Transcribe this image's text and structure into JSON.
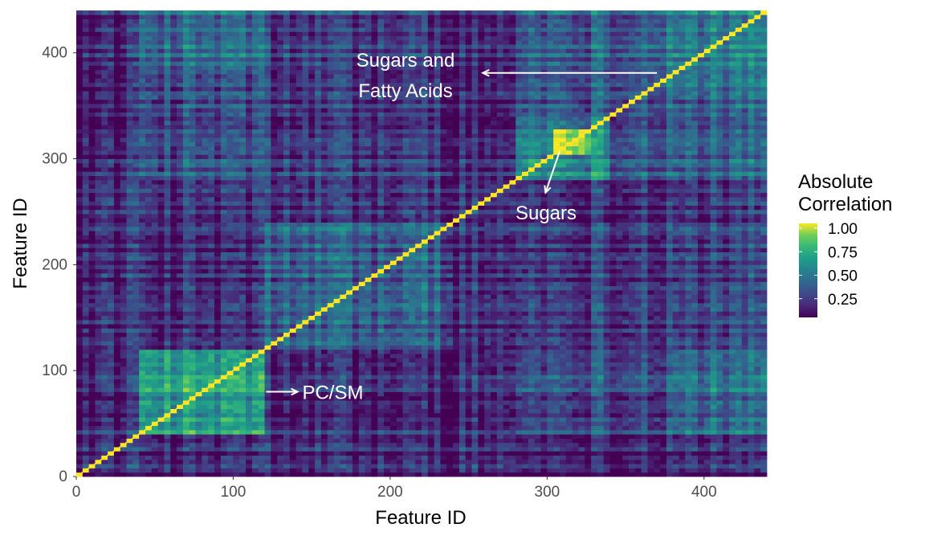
{
  "chart_data": {
    "type": "heatmap",
    "title": "",
    "xlabel": "Feature ID",
    "ylabel": "Feature ID",
    "xlim": [
      0,
      440
    ],
    "ylim": [
      0,
      440
    ],
    "x_ticks": [
      0,
      100,
      200,
      300,
      400
    ],
    "y_ticks": [
      0,
      100,
      200,
      300,
      400
    ],
    "grid": false,
    "colormap": "viridis",
    "colors": {
      "low": "#440154",
      "mid": "#21908c",
      "high": "#fde725"
    },
    "legend": {
      "title_line1": "Absolute",
      "title_line2": "Correlation",
      "placement": "right",
      "ticks": [
        0.25,
        0.5,
        0.75,
        1.0
      ],
      "tick_labels": [
        "0.25",
        "0.50",
        "0.75",
        "1.00"
      ],
      "range": [
        0,
        1
      ]
    },
    "diagonal_value": 1.0,
    "blocks": [
      {
        "x_range": [
          40,
          120
        ],
        "y_range": [
          40,
          120
        ],
        "mean_corr": 0.62
      },
      {
        "x_range": [
          120,
          240
        ],
        "y_range": [
          120,
          240
        ],
        "mean_corr": 0.32
      },
      {
        "x_range": [
          280,
          340
        ],
        "y_range": [
          280,
          340
        ],
        "mean_corr": 0.55
      },
      {
        "x_range": [
          305,
          330
        ],
        "y_range": [
          305,
          330
        ],
        "mean_corr": 0.97
      },
      {
        "x_range": [
          365,
          440
        ],
        "y_range": [
          365,
          440
        ],
        "mean_corr": 0.45
      },
      {
        "x_range": [
          280,
          440
        ],
        "y_range": [
          280,
          440
        ],
        "mean_corr": 0.35
      },
      {
        "x_range": [
          40,
          120
        ],
        "y_range": [
          380,
          440
        ],
        "mean_corr": 0.38
      },
      {
        "x_range": [
          380,
          440
        ],
        "y_range": [
          40,
          120
        ],
        "mean_corr": 0.38
      },
      {
        "x_range": [
          280,
          440
        ],
        "y_range": [
          40,
          120
        ],
        "mean_corr": 0.28
      },
      {
        "x_range": [
          40,
          120
        ],
        "y_range": [
          280,
          440
        ],
        "mean_corr": 0.28
      },
      {
        "x_range": [
          120,
          240
        ],
        "y_range": [
          280,
          440
        ],
        "mean_corr": 0.2
      },
      {
        "x_range": [
          280,
          440
        ],
        "y_range": [
          120,
          240
        ],
        "mean_corr": 0.2
      }
    ],
    "background_corr": 0.12,
    "annotations": [
      {
        "text": "PC/SM",
        "arrow_from": [
          121,
          80
        ],
        "arrow_to": [
          141,
          80
        ],
        "text_at": [
          144,
          80
        ],
        "anchor": "start"
      },
      {
        "text_line1": "Sugars",
        "text_line2": "Fatty Acids",
        "text_line1_full": "Sugars and",
        "arrow_from": [
          370,
          381
        ],
        "arrow_to": [
          259,
          381
        ],
        "text_at": [
          210,
          395
        ],
        "anchor": "middle"
      },
      {
        "text": "Sugars",
        "arrow_from": [
          308,
          307
        ],
        "arrow_to": [
          299,
          268
        ],
        "text_at": [
          299,
          248
        ],
        "anchor": "middle"
      }
    ]
  }
}
